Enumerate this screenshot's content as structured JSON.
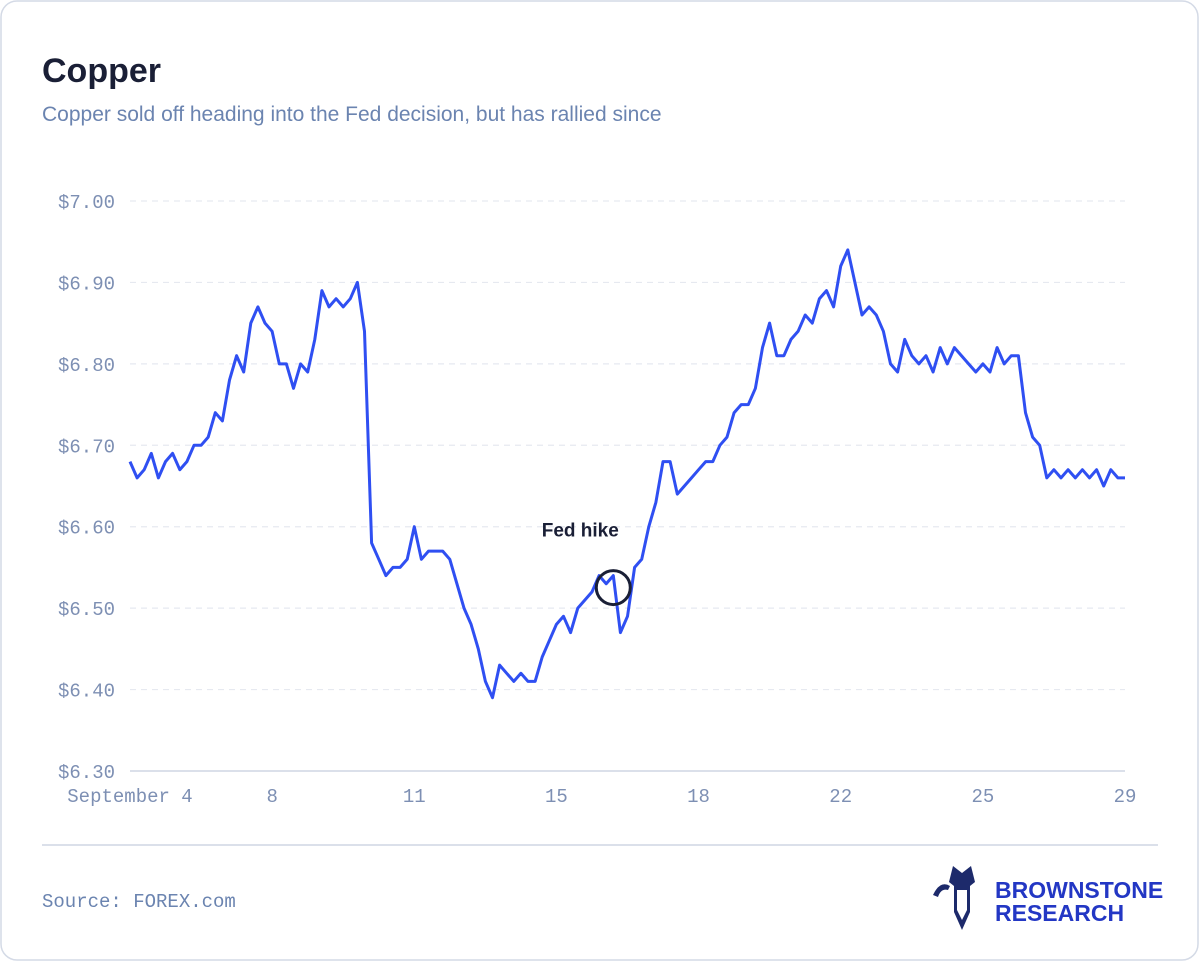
{
  "chart_data": {
    "type": "line",
    "title": "Copper",
    "subtitle": "Copper sold off heading into the Fed decision, but has rallied since",
    "color": "#2f4ff2",
    "categories": [
      "September 4",
      null,
      null,
      null,
      null,
      null,
      null,
      null,
      null,
      null,
      null,
      null,
      null,
      null,
      null,
      null,
      null,
      null,
      null,
      null,
      "8",
      null,
      null,
      null,
      null,
      null,
      null,
      null,
      null,
      null,
      null,
      null,
      null,
      null,
      null,
      null,
      null,
      null,
      null,
      null,
      "11",
      null,
      null,
      null,
      null,
      null,
      null,
      null,
      null,
      null,
      null,
      null,
      null,
      null,
      null,
      null,
      null,
      null,
      null,
      null,
      "15",
      null,
      null,
      null,
      null,
      null,
      null,
      null,
      null,
      null,
      null,
      null,
      null,
      null,
      null,
      null,
      null,
      null,
      null,
      null,
      "18",
      null,
      null,
      null,
      null,
      null,
      null,
      null,
      null,
      null,
      null,
      null,
      null,
      null,
      null,
      null,
      null,
      null,
      null,
      null,
      "22",
      null,
      null,
      null,
      null,
      null,
      null,
      null,
      null,
      null,
      null,
      null,
      null,
      null,
      null,
      null,
      null,
      null,
      null,
      null,
      "25",
      null,
      null,
      null,
      null,
      null,
      null,
      null,
      null,
      null,
      null,
      null,
      null,
      null,
      null,
      null,
      null,
      null,
      null,
      null,
      "29"
    ],
    "values": [
      6.68,
      6.66,
      6.67,
      6.69,
      6.66,
      6.68,
      6.69,
      6.67,
      6.68,
      6.7,
      6.7,
      6.71,
      6.74,
      6.73,
      6.78,
      6.81,
      6.79,
      6.85,
      6.87,
      6.85,
      6.84,
      6.8,
      6.8,
      6.77,
      6.8,
      6.79,
      6.83,
      6.89,
      6.87,
      6.88,
      6.87,
      6.88,
      6.9,
      6.84,
      6.58,
      6.56,
      6.54,
      6.55,
      6.55,
      6.56,
      6.6,
      6.56,
      6.57,
      6.57,
      6.57,
      6.56,
      6.53,
      6.5,
      6.48,
      6.45,
      6.41,
      6.39,
      6.43,
      6.42,
      6.41,
      6.42,
      6.41,
      6.41,
      6.44,
      6.46,
      6.48,
      6.49,
      6.47,
      6.5,
      6.51,
      6.52,
      6.54,
      6.53,
      6.54,
      6.47,
      6.49,
      6.55,
      6.56,
      6.6,
      6.63,
      6.68,
      6.68,
      6.64,
      6.65,
      6.66,
      6.67,
      6.68,
      6.68,
      6.7,
      6.71,
      6.74,
      6.75,
      6.75,
      6.77,
      6.82,
      6.85,
      6.81,
      6.81,
      6.83,
      6.84,
      6.86,
      6.85,
      6.88,
      6.89,
      6.87,
      6.92,
      6.94,
      6.9,
      6.86,
      6.87,
      6.86,
      6.84,
      6.8,
      6.79,
      6.83,
      6.81,
      6.8,
      6.81,
      6.79,
      6.82,
      6.8,
      6.82,
      6.81,
      6.8,
      6.79,
      6.8,
      6.79,
      6.82,
      6.8,
      6.81,
      6.81,
      6.74,
      6.71,
      6.7,
      6.66,
      6.67,
      6.66,
      6.67,
      6.66,
      6.67,
      6.66,
      6.67,
      6.65,
      6.67,
      6.66,
      6.66
    ],
    "ylim": [
      6.3,
      7.0
    ],
    "yticks": [
      {
        "value": 6.3,
        "label": "$6.30"
      },
      {
        "value": 6.4,
        "label": "$6.40"
      },
      {
        "value": 6.5,
        "label": "$6.50"
      },
      {
        "value": 6.6,
        "label": "$6.60"
      },
      {
        "value": 6.7,
        "label": "$6.70"
      },
      {
        "value": 6.8,
        "label": "$6.80"
      },
      {
        "value": 6.9,
        "label": "$6.90"
      },
      {
        "value": 7.0,
        "label": "$7.00"
      }
    ],
    "grid": true,
    "annotation": "Fed hike",
    "source": "Source: FOREX.com",
    "logo": [
      "BROWNSTONE",
      "RESEARCH"
    ]
  }
}
